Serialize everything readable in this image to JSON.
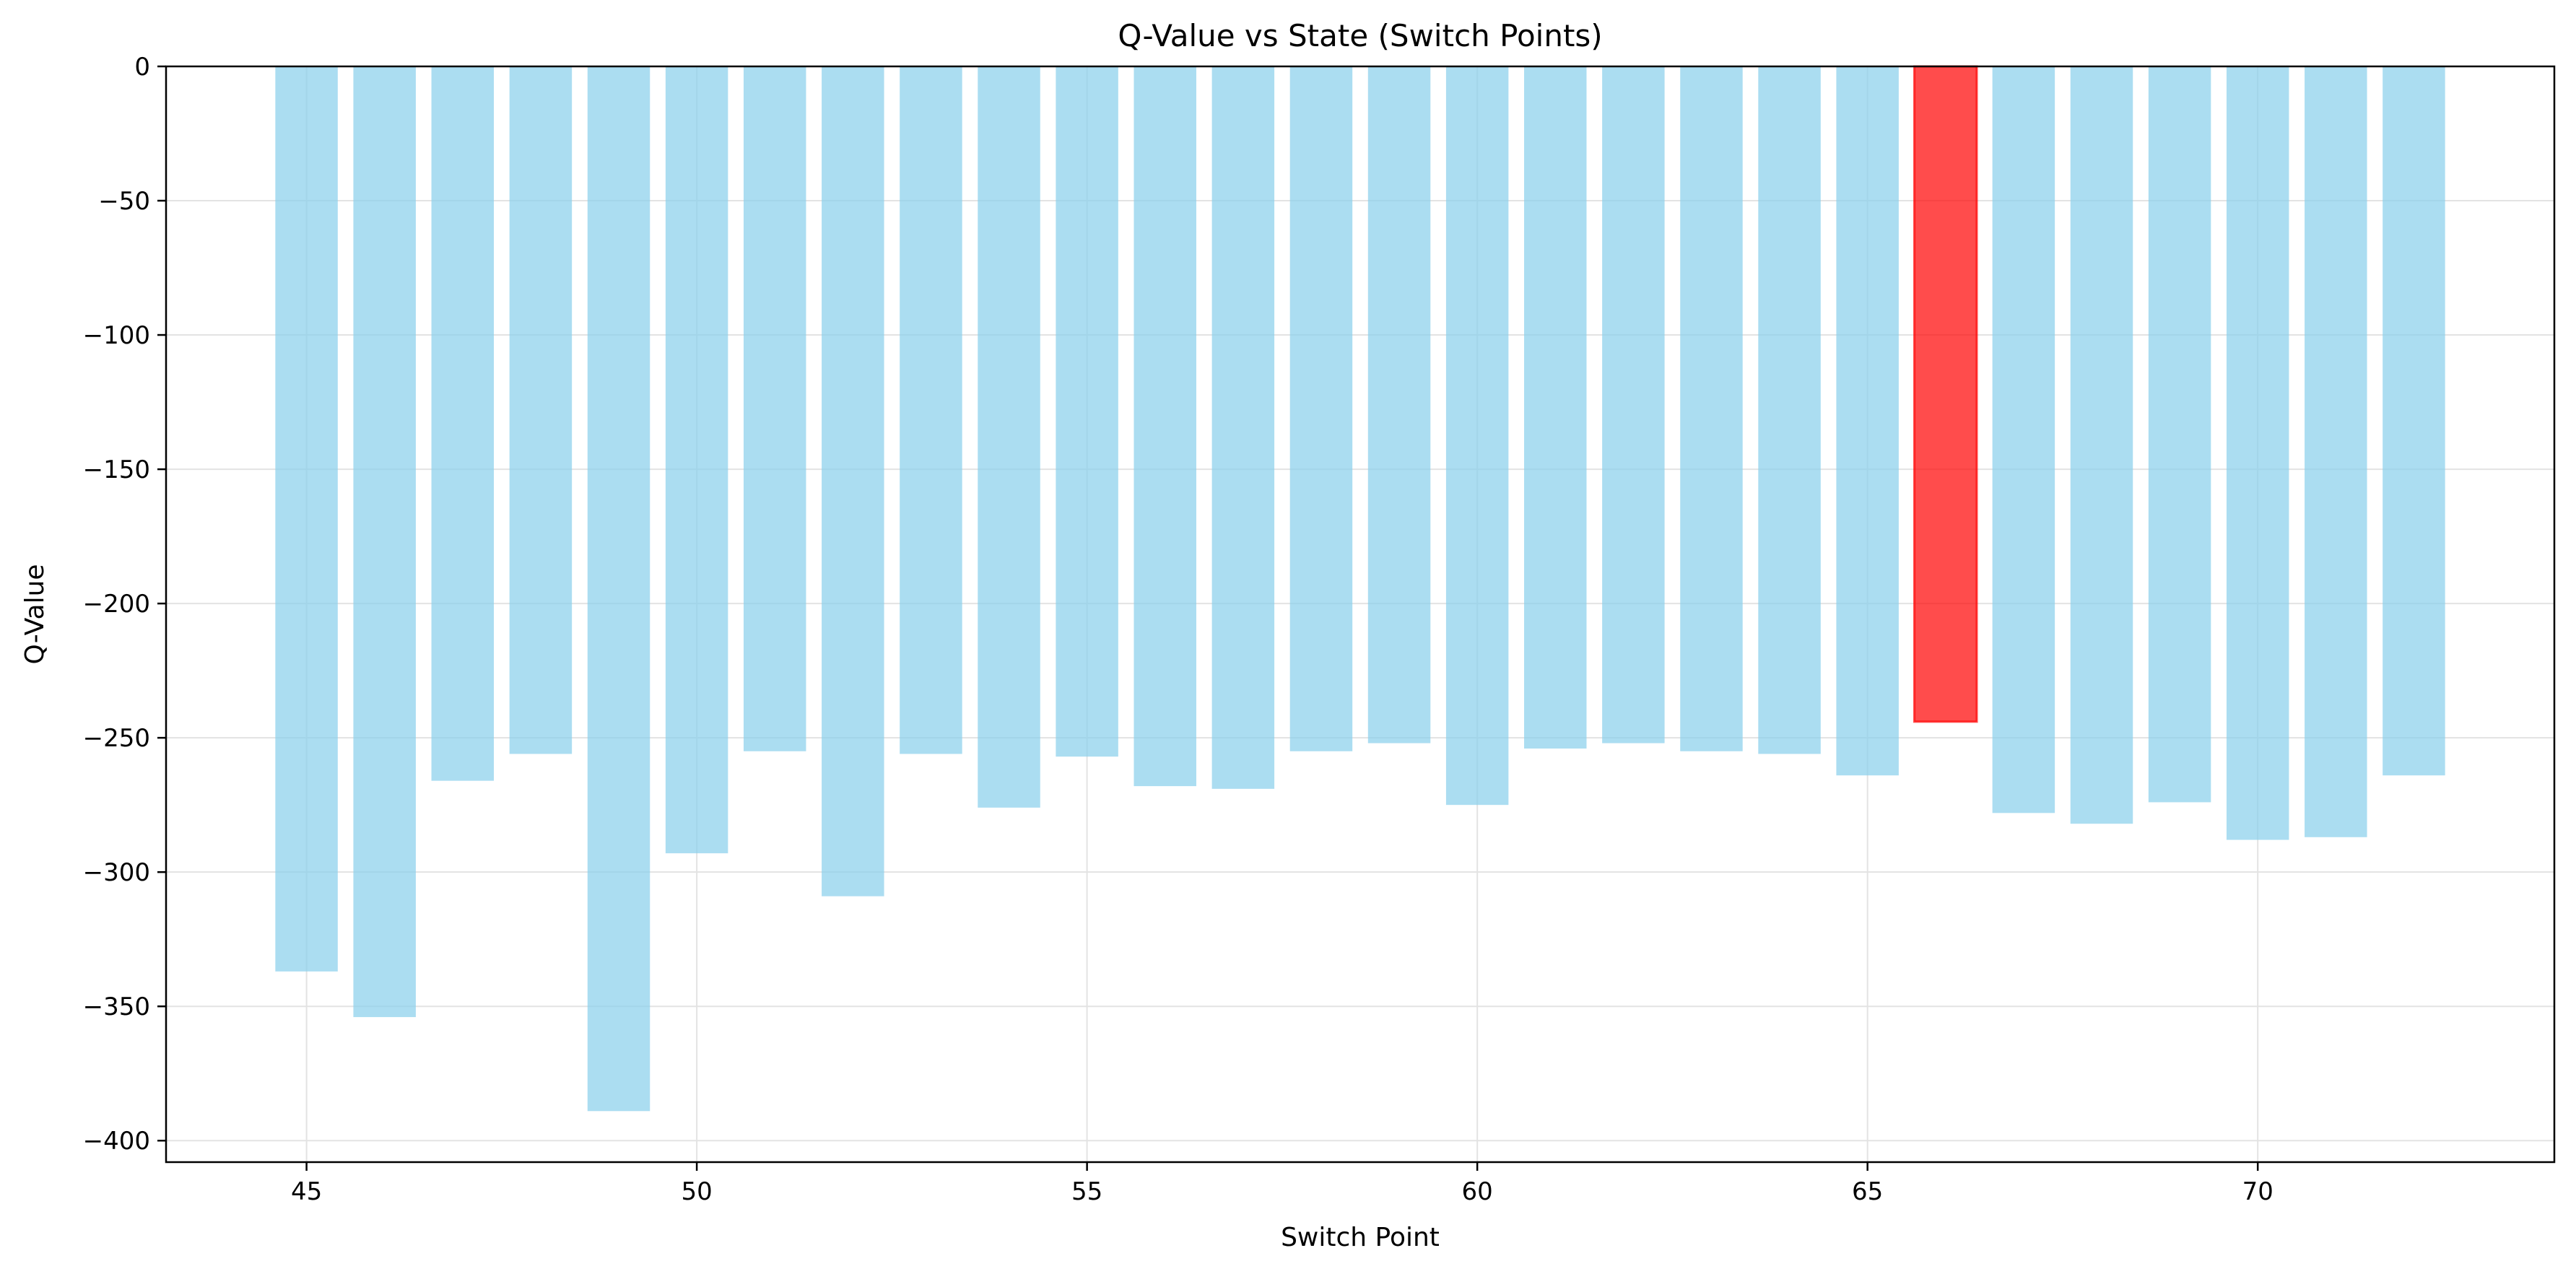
{
  "chart_data": {
    "type": "bar",
    "title": "Q-Value vs State (Switch Points)",
    "xlabel": "Switch Point",
    "ylabel": "Q-Value",
    "x": [
      45,
      46,
      47,
      48,
      49,
      50,
      51,
      52,
      53,
      54,
      55,
      56,
      57,
      58,
      59,
      60,
      61,
      62,
      63,
      64,
      65,
      66,
      67,
      68,
      69,
      70,
      71,
      72
    ],
    "values": [
      -337,
      -354,
      -266,
      -256,
      -389,
      -293,
      -255,
      -309,
      -256,
      -276,
      -257,
      -268,
      -269,
      -255,
      -252,
      -275,
      -254,
      -252,
      -255,
      -256,
      -264,
      -244,
      -278,
      -282,
      -274,
      -288,
      -287,
      -264
    ],
    "highlight_x": 66,
    "xlim": [
      43.2,
      73.8
    ],
    "ylim": [
      -408,
      0
    ],
    "xticks": [
      45,
      50,
      55,
      60,
      65,
      70
    ],
    "yticks": [
      0,
      -50,
      -100,
      -150,
      -200,
      -250,
      -300,
      -350,
      -400
    ],
    "grid": true,
    "colors": {
      "bar": "#87CEEB",
      "highlight": "#FF0000",
      "grid": "#e3e3e3",
      "axis": "#000000"
    }
  }
}
